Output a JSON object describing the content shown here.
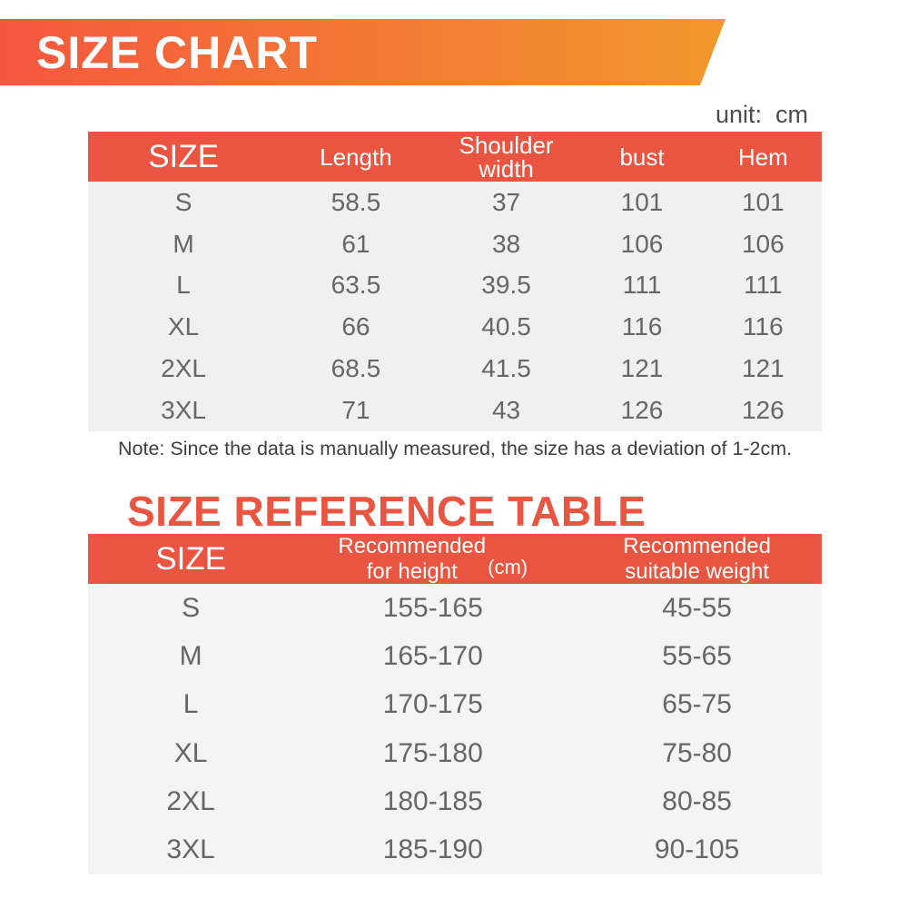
{
  "colors": {
    "accent": "#EA5541",
    "banner_gradient_left": "#F4573E",
    "banner_gradient_right": "#F2982C",
    "table1_body_bg": "#F0F0F0",
    "table2_body_bg": "#F4F4F4",
    "header_text": "#FFFFFF",
    "cell_text": "#666666",
    "note_text": "#3E3E3E",
    "unit_text": "#4C4C4C"
  },
  "banner": {
    "title": "SIZE CHART"
  },
  "unit_label": "unit:  cm",
  "size_chart_table": {
    "columns": [
      "SIZE",
      "Length",
      "Shoulder width",
      "bust",
      "Hem"
    ],
    "rows": [
      [
        "S",
        "58.5",
        "37",
        "101",
        "101"
      ],
      [
        "M",
        "61",
        "38",
        "106",
        "106"
      ],
      [
        "L",
        "63.5",
        "39.5",
        "111",
        "111"
      ],
      [
        "XL",
        "66",
        "40.5",
        "116",
        "116"
      ],
      [
        "2XL",
        "68.5",
        "41.5",
        "121",
        "121"
      ],
      [
        "3XL",
        "71",
        "43",
        "126",
        "126"
      ]
    ]
  },
  "note": "Note: Since the data is manually measured, the size has a deviation of 1-2cm.",
  "reference_heading": "SIZE REFERENCE TABLE",
  "reference_table": {
    "size_column": "SIZE",
    "height_column": {
      "line1": "Recommended",
      "line2": "for height",
      "unit": "(cm)"
    },
    "weight_column": {
      "line1": "Recommended",
      "line2": "suitable weight"
    },
    "rows": [
      [
        "S",
        "155-165",
        "45-55"
      ],
      [
        "M",
        "165-170",
        "55-65"
      ],
      [
        "L",
        "170-175",
        "65-75"
      ],
      [
        "XL",
        "175-180",
        "75-80"
      ],
      [
        "2XL",
        "180-185",
        "80-85"
      ],
      [
        "3XL",
        "185-190",
        "90-105"
      ]
    ]
  }
}
